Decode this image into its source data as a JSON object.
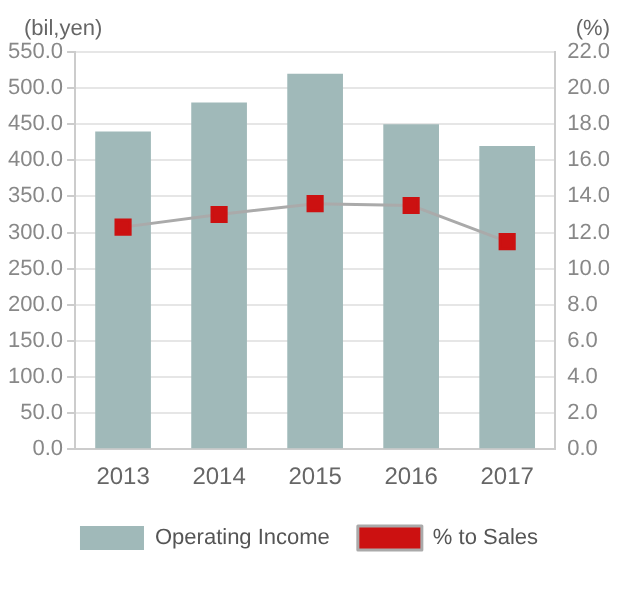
{
  "chart_data": {
    "type": "bar",
    "categories": [
      "2013",
      "2014",
      "2015",
      "2016",
      "2017"
    ],
    "series": [
      {
        "name": "Operating Income",
        "color": "#a0b9b9",
        "values": [
          440,
          480,
          520,
          450,
          420
        ]
      },
      {
        "name": "% to Sales",
        "type": "line",
        "axis": "y2",
        "color": "#cc1111",
        "marker": "square",
        "values": [
          12.3,
          13.0,
          13.6,
          13.5,
          11.5
        ]
      }
    ],
    "ylabel": "(bil,yen)",
    "y2label": "(%)",
    "ylim": [
      0,
      550
    ],
    "yticks": [
      {
        "value": 0,
        "label": "0.0"
      },
      {
        "value": 50,
        "label": "50.0"
      },
      {
        "value": 100,
        "label": "100.0"
      },
      {
        "value": 150,
        "label": "150.0"
      },
      {
        "value": 200,
        "label": "200.0"
      },
      {
        "value": 250,
        "label": "250.0"
      },
      {
        "value": 300,
        "label": "300.0"
      },
      {
        "value": 350,
        "label": "350.0"
      },
      {
        "value": 400,
        "label": "400.0"
      },
      {
        "value": 450,
        "label": "450.0"
      },
      {
        "value": 500,
        "label": "500.0"
      },
      {
        "value": 550,
        "label": "550.0"
      }
    ],
    "y2lim": [
      0,
      22
    ],
    "y2ticks": [
      {
        "value": 0,
        "label": "0.0"
      },
      {
        "value": 2,
        "label": "2.0"
      },
      {
        "value": 4,
        "label": "4.0"
      },
      {
        "value": 6,
        "label": "6.0"
      },
      {
        "value": 8,
        "label": "8.0"
      },
      {
        "value": 10,
        "label": "10.0"
      },
      {
        "value": 12,
        "label": "12.0"
      },
      {
        "value": 14,
        "label": "14.0"
      },
      {
        "value": 16,
        "label": "16.0"
      },
      {
        "value": 18,
        "label": "18.0"
      },
      {
        "value": 20,
        "label": "20.0"
      },
      {
        "value": 22,
        "label": "22.0"
      }
    ],
    "grid": "y",
    "legend": "bottom"
  }
}
